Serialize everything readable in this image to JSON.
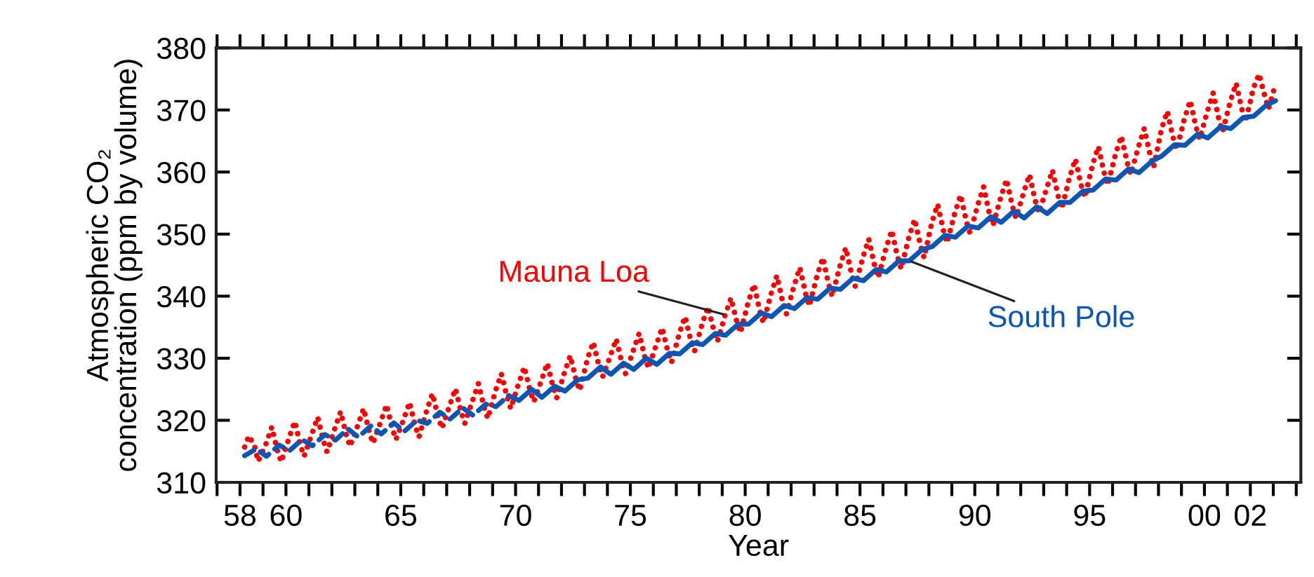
{
  "chart_data": {
    "type": "line",
    "xlabel": "Year",
    "ylabel": "Atmospheric CO₂\nconcentration (ppm by volume)",
    "xlim": [
      1956.96,
      2004.2
    ],
    "ylim": [
      310,
      380
    ],
    "xticks": [
      {
        "value": 1958,
        "label": "58"
      },
      {
        "value": 1960,
        "label": "60"
      },
      {
        "value": 1965,
        "label": "65"
      },
      {
        "value": 1970,
        "label": "70"
      },
      {
        "value": 1975,
        "label": "75"
      },
      {
        "value": 1980,
        "label": "80"
      },
      {
        "value": 1985,
        "label": "85"
      },
      {
        "value": 1990,
        "label": "90"
      },
      {
        "value": 1995,
        "label": "95"
      },
      {
        "value": 2000,
        "label": "00"
      },
      {
        "value": 2002,
        "label": "02"
      }
    ],
    "yticks": [
      310,
      320,
      330,
      340,
      350,
      360,
      370,
      380
    ],
    "grid": false,
    "legend": false,
    "marker": "none",
    "series": [
      {
        "name": "Mauna Loa",
        "color": "#ff0000",
        "line_style": "dotted",
        "x": [
          1958.2,
          1958.38,
          1958.63,
          1958.79,
          1959.13,
          1959.38,
          1959.63,
          1959.79,
          1960.13,
          1960.38,
          1960.63,
          1960.79,
          1961.13,
          1961.38,
          1961.63,
          1961.79,
          1962.13,
          1962.38,
          1962.63,
          1962.79,
          1963.13,
          1963.38,
          1963.63,
          1963.79,
          1964.13,
          1964.38,
          1964.63,
          1964.79,
          1965.13,
          1965.38,
          1965.63,
          1965.79,
          1966.13,
          1966.38,
          1966.63,
          1966.79,
          1967.13,
          1967.38,
          1967.63,
          1967.79,
          1968.13,
          1968.38,
          1968.63,
          1968.79,
          1969.13,
          1969.38,
          1969.63,
          1969.79,
          1970.13,
          1970.38,
          1970.63,
          1970.79,
          1971.13,
          1971.38,
          1971.63,
          1971.79,
          1972.13,
          1972.38,
          1972.63,
          1972.79,
          1973.13,
          1973.38,
          1973.63,
          1973.79,
          1974.13,
          1974.38,
          1974.63,
          1974.79,
          1975.13,
          1975.38,
          1975.63,
          1975.79,
          1976.13,
          1976.38,
          1976.63,
          1976.79,
          1977.13,
          1977.38,
          1977.63,
          1977.79,
          1978.13,
          1978.38,
          1978.63,
          1978.79,
          1979.13,
          1979.38,
          1979.63,
          1979.79,
          1980.13,
          1980.38,
          1980.63,
          1980.79,
          1981.13,
          1981.38,
          1981.63,
          1981.79,
          1982.13,
          1982.38,
          1982.63,
          1982.79,
          1983.13,
          1983.38,
          1983.63,
          1983.79,
          1984.13,
          1984.38,
          1984.63,
          1984.79,
          1985.13,
          1985.38,
          1985.63,
          1985.79,
          1986.13,
          1986.38,
          1986.63,
          1986.79,
          1987.13,
          1987.38,
          1987.63,
          1987.79,
          1988.13,
          1988.38,
          1988.63,
          1988.79,
          1989.13,
          1989.38,
          1989.63,
          1989.79,
          1990.13,
          1990.38,
          1990.63,
          1990.79,
          1991.13,
          1991.38,
          1991.63,
          1991.79,
          1992.13,
          1992.38,
          1992.63,
          1992.79,
          1993.13,
          1993.38,
          1993.63,
          1993.79,
          1994.13,
          1994.38,
          1994.63,
          1994.79,
          1995.13,
          1995.38,
          1995.63,
          1995.79,
          1996.13,
          1996.38,
          1996.63,
          1996.79,
          1997.13,
          1997.38,
          1997.63,
          1997.79,
          1998.13,
          1998.38,
          1998.63,
          1998.79,
          1999.13,
          1999.38,
          1999.63,
          1999.79,
          2000.13,
          2000.38,
          2000.63,
          2000.79,
          2001.13,
          2001.38,
          2001.63,
          2001.79,
          2002.13,
          2002.38,
          2002.63,
          2002.79,
          2003.1
        ],
        "values": [
          315.7,
          317.5,
          315.9,
          313.4,
          316.2,
          318.9,
          315.1,
          313.3,
          317.1,
          319.8,
          316.0,
          314.2,
          317.8,
          320.5,
          316.7,
          314.9,
          318.7,
          321.4,
          317.6,
          315.8,
          319.2,
          321.9,
          318.1,
          316.3,
          319.8,
          322.5,
          318.7,
          316.9,
          320.2,
          322.9,
          319.1,
          317.3,
          321.6,
          324.3,
          320.5,
          318.7,
          322.4,
          325.1,
          321.3,
          319.5,
          323.2,
          325.9,
          322.1,
          320.3,
          324.8,
          327.5,
          323.7,
          321.9,
          325.9,
          328.6,
          324.8,
          323.0,
          326.5,
          329.2,
          325.4,
          323.6,
          327.7,
          330.4,
          326.6,
          324.8,
          329.9,
          332.6,
          328.8,
          327.0,
          330.4,
          333.1,
          329.3,
          327.5,
          331.3,
          334.0,
          330.2,
          328.4,
          332.2,
          334.9,
          331.1,
          329.3,
          334.0,
          336.7,
          332.9,
          331.1,
          335.6,
          338.3,
          334.5,
          332.7,
          337.0,
          339.7,
          335.9,
          334.1,
          339.0,
          341.9,
          337.7,
          335.7,
          340.4,
          343.3,
          339.1,
          337.1,
          341.7,
          344.6,
          340.4,
          338.4,
          343.3,
          346.2,
          342.0,
          340.0,
          344.9,
          347.8,
          343.6,
          341.6,
          346.3,
          349.2,
          345.0,
          343.0,
          347.7,
          350.6,
          346.4,
          344.4,
          349.5,
          352.4,
          348.2,
          346.2,
          351.9,
          354.8,
          350.6,
          348.6,
          353.4,
          356.3,
          352.1,
          350.1,
          354.7,
          357.6,
          353.4,
          351.4,
          355.9,
          358.8,
          354.6,
          352.6,
          356.7,
          359.6,
          355.4,
          353.4,
          357.4,
          360.3,
          356.1,
          354.1,
          359.2,
          362.1,
          357.9,
          355.9,
          361.2,
          364.1,
          359.9,
          357.9,
          362.9,
          365.8,
          361.6,
          359.6,
          364.1,
          367.0,
          362.8,
          360.8,
          366.9,
          369.8,
          365.6,
          363.6,
          368.6,
          371.5,
          367.3,
          365.3,
          369.8,
          372.7,
          368.5,
          366.5,
          371.4,
          374.3,
          370.1,
          368.1,
          373.5,
          375.8,
          372.2,
          370.2,
          374.2
        ]
      },
      {
        "name": "South Pole",
        "color": "#0a56b4",
        "line_style": "solid",
        "x": [
          1970.15,
          1970.7,
          1971.15,
          1971.7,
          1972.15,
          1972.7,
          1973.15,
          1973.7,
          1974.15,
          1974.7,
          1975.15,
          1975.7,
          1976.15,
          1976.7,
          1977.15,
          1977.7,
          1978.15,
          1978.7,
          1979.15,
          1979.7,
          1980.15,
          1980.7,
          1981.15,
          1981.7,
          1982.15,
          1982.7,
          1983.15,
          1983.7,
          1984.15,
          1984.7,
          1985.15,
          1985.7,
          1986.15,
          1986.7,
          1987.15,
          1987.7,
          1988.15,
          1988.7,
          1989.15,
          1989.7,
          1990.15,
          1990.7,
          1991.15,
          1991.7,
          1992.15,
          1992.7,
          1993.15,
          1993.7,
          1994.15,
          1994.7,
          1995.15,
          1995.7,
          1996.15,
          1996.7,
          1997.15,
          1997.7,
          1998.15,
          1998.7,
          1999.15,
          1999.7,
          2000.15,
          2000.7,
          2001.15,
          2001.7,
          2002.15,
          2002.7,
          2003.1
        ],
        "values": [
          323.2,
          325.0,
          323.7,
          325.5,
          324.7,
          326.5,
          326.8,
          328.6,
          327.4,
          329.2,
          328.2,
          330.0,
          329.0,
          330.8,
          330.7,
          332.5,
          332.2,
          334.0,
          333.7,
          335.5,
          335.5,
          337.3,
          336.7,
          338.5,
          338.0,
          339.8,
          339.5,
          341.3,
          341.1,
          342.9,
          342.5,
          344.3,
          343.9,
          345.7,
          345.7,
          347.5,
          348.0,
          349.8,
          349.5,
          351.3,
          351.0,
          352.8,
          351.9,
          353.7,
          352.6,
          354.4,
          353.3,
          355.1,
          355.1,
          356.9,
          357.1,
          358.9,
          358.7,
          360.5,
          359.9,
          361.7,
          362.6,
          364.4,
          364.3,
          366.1,
          365.5,
          367.3,
          367.0,
          368.8,
          369.0,
          370.8,
          371.5
        ]
      },
      {
        "color": "#0a56b4",
        "line_style": "dashed",
        "x": [
          1958.2,
          1958.7,
          1959.15,
          1959.7,
          1960.15,
          1960.7,
          1961.15,
          1961.7,
          1962.15,
          1962.7,
          1963.15,
          1963.7,
          1964.15,
          1964.7,
          1965.15,
          1965.7,
          1966.15,
          1966.7,
          1967.15,
          1967.7,
          1968.15,
          1968.7,
          1969.15,
          1969.7,
          1970.15
        ],
        "values": [
          314.3,
          315.4,
          314.2,
          316.0,
          315.1,
          316.9,
          315.9,
          317.7,
          316.8,
          318.6,
          317.3,
          319.1,
          317.8,
          319.6,
          318.2,
          320.0,
          319.5,
          321.3,
          320.2,
          322.0,
          320.8,
          322.6,
          322.2,
          324.0,
          323.2
        ]
      }
    ]
  }
}
